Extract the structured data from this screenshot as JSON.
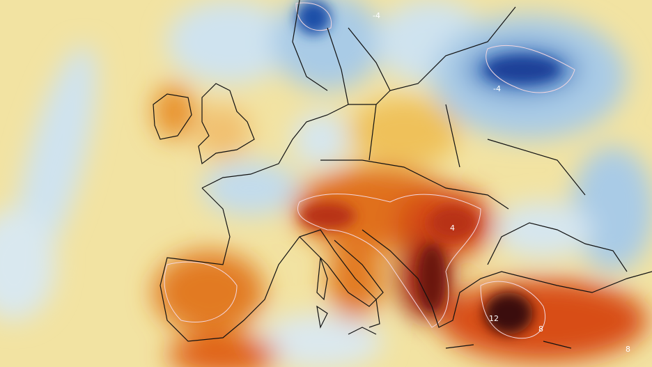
{
  "map": {
    "colors": {
      "background": "#f2e3a2",
      "light_blue": "#cfe3ef",
      "blue": "#5d9fd3",
      "dark_blue": "#1f4fa8",
      "orange": "#f0a030",
      "red_orange": "#dd5a1a",
      "dark_red": "#8a1a10",
      "darkest": "#3a0a08",
      "contour": "#f3d7e0",
      "coastline": "#111111"
    },
    "contour_labels": [
      {
        "text": "12",
        "region": "western-turkey"
      },
      {
        "text": "8",
        "region": "southern-turkey"
      },
      {
        "text": "8",
        "region": "syria"
      },
      {
        "text": "4",
        "region": "romania"
      },
      {
        "text": "-4",
        "region": "scandinavia"
      },
      {
        "text": "-4",
        "region": "western-russia"
      }
    ]
  }
}
